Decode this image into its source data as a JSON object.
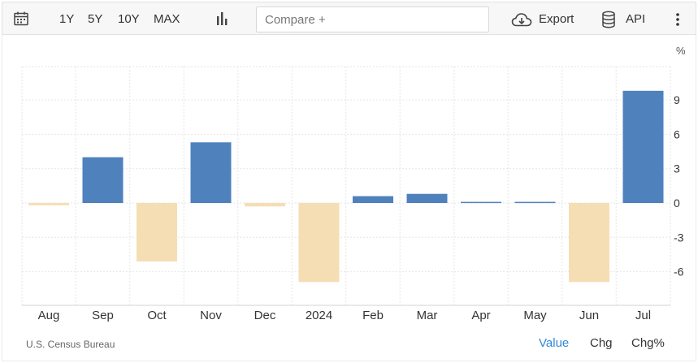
{
  "toolbar": {
    "ranges": [
      "1Y",
      "5Y",
      "10Y",
      "MAX"
    ],
    "compare_placeholder": "Compare +",
    "export_label": "Export",
    "api_label": "API"
  },
  "footer": {
    "source": "U.S. Census Bureau",
    "modes": [
      "Value",
      "Chg",
      "Chg%"
    ],
    "active_mode": "Value"
  },
  "colors": {
    "positive": "#4f81bd",
    "negative": "#f5deb3",
    "grid": "#e6e6e6",
    "active_mode": "#2f8ad8"
  },
  "chart_data": {
    "type": "bar",
    "categories": [
      "Aug",
      "Sep",
      "Oct",
      "Nov",
      "Dec",
      "2024",
      "Feb",
      "Mar",
      "Apr",
      "May",
      "Jun",
      "Jul"
    ],
    "values": [
      -0.2,
      4.0,
      -5.1,
      5.3,
      -0.3,
      -6.9,
      0.6,
      0.8,
      0.1,
      0.1,
      -6.9,
      9.8
    ],
    "unit": "%",
    "yticks": [
      9,
      6,
      3,
      0,
      -3,
      -6
    ],
    "ylim": [
      -9,
      12
    ],
    "grid": true,
    "y_axis_position": "right"
  }
}
